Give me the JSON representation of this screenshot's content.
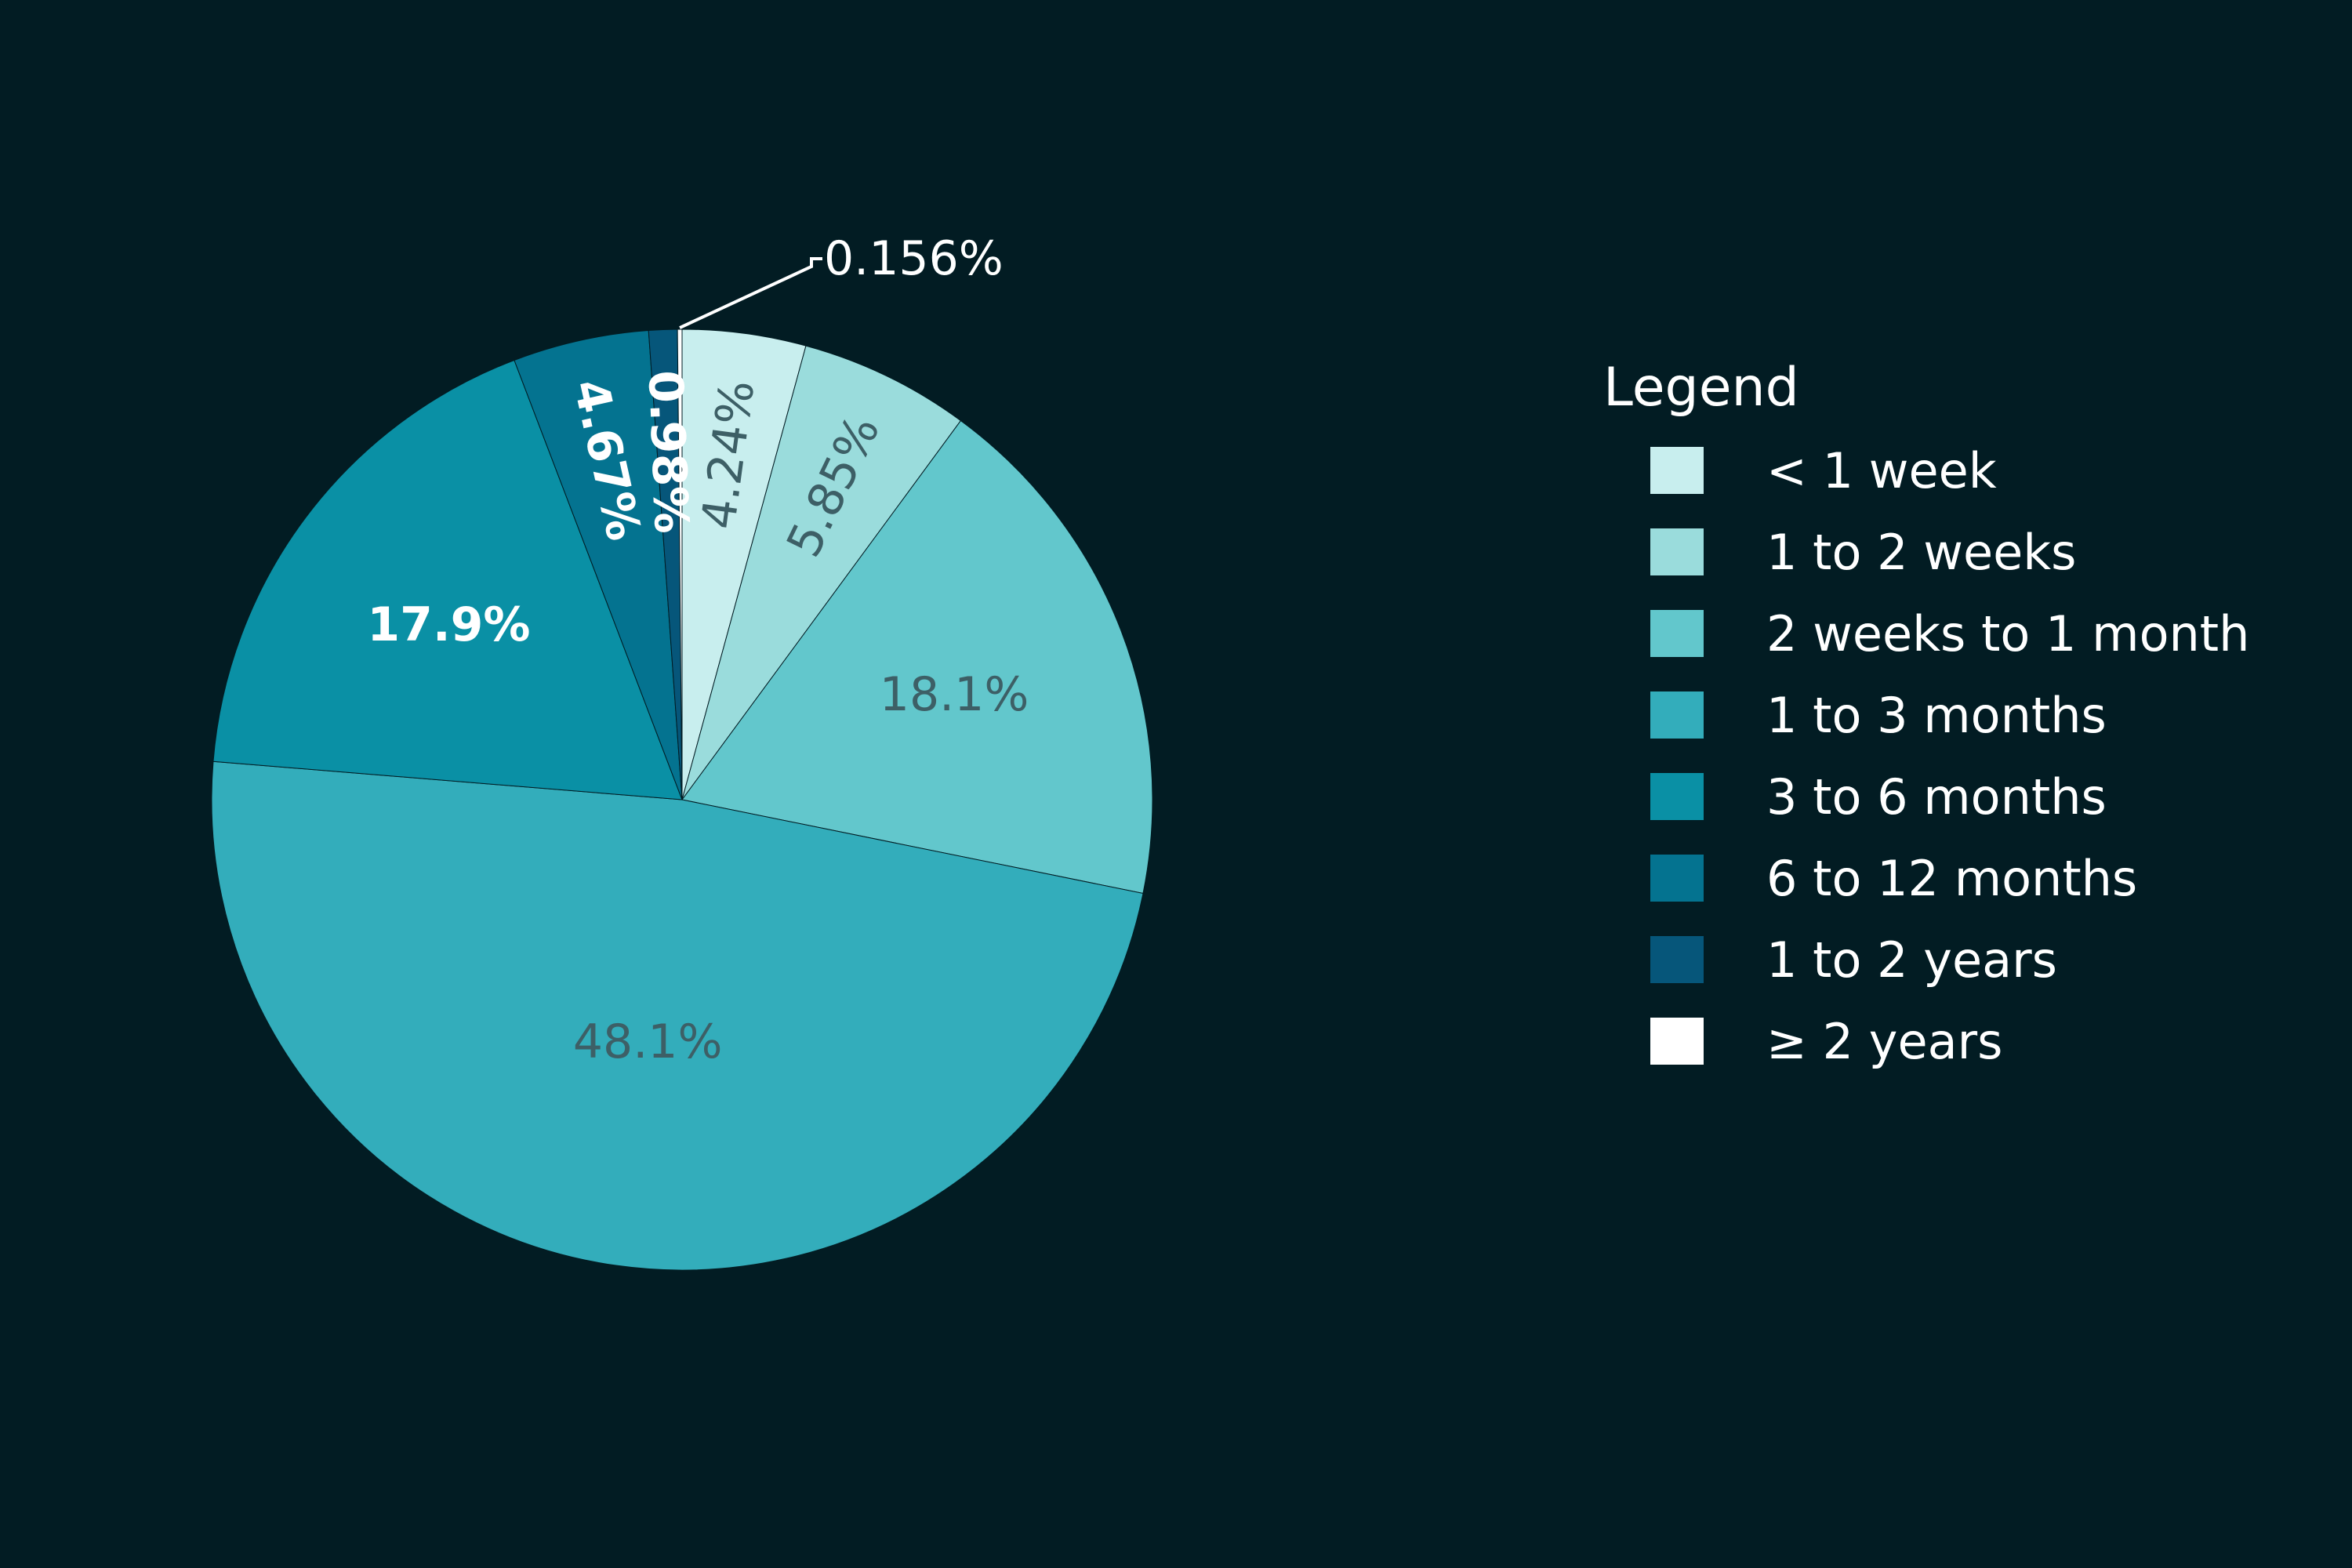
{
  "chart_data": {
    "type": "pie",
    "legend_title": "Legend",
    "legend_position": "right",
    "slices": [
      {
        "name": "< 1 week",
        "value": 4.24,
        "label": "4.24%",
        "color": "#c8eeee",
        "label_color": "#3d5f66"
      },
      {
        "name": "1 to 2 weeks",
        "value": 5.85,
        "label": "5.85%",
        "color": "#9adcdc",
        "label_color": "#3d5f66"
      },
      {
        "name": "2 weeks to 1 month",
        "value": 18.1,
        "label": "18.1%",
        "color": "#62c7cc",
        "label_color": "#3d5f66"
      },
      {
        "name": "1 to 3 months",
        "value": 48.1,
        "label": "48.1%",
        "color": "#33adbb",
        "label_color": "#3d5f66"
      },
      {
        "name": "3 to 6 months",
        "value": 17.9,
        "label": "17.9%",
        "color": "#0a90a5",
        "label_color": "#ffffff"
      },
      {
        "name": "6 to 12 months",
        "value": 4.67,
        "label": "4.67%",
        "color": "#047390",
        "label_color": "#ffffff"
      },
      {
        "name": "1 to 2 years",
        "value": 0.98,
        "label": "0.98%",
        "color": "#06567a",
        "label_color": "#ffffff"
      },
      {
        "name": "≥ 2 years",
        "value": 0.156,
        "label": "0.156%",
        "color": "#ffffff",
        "label_color": "#ffffff"
      }
    ]
  }
}
